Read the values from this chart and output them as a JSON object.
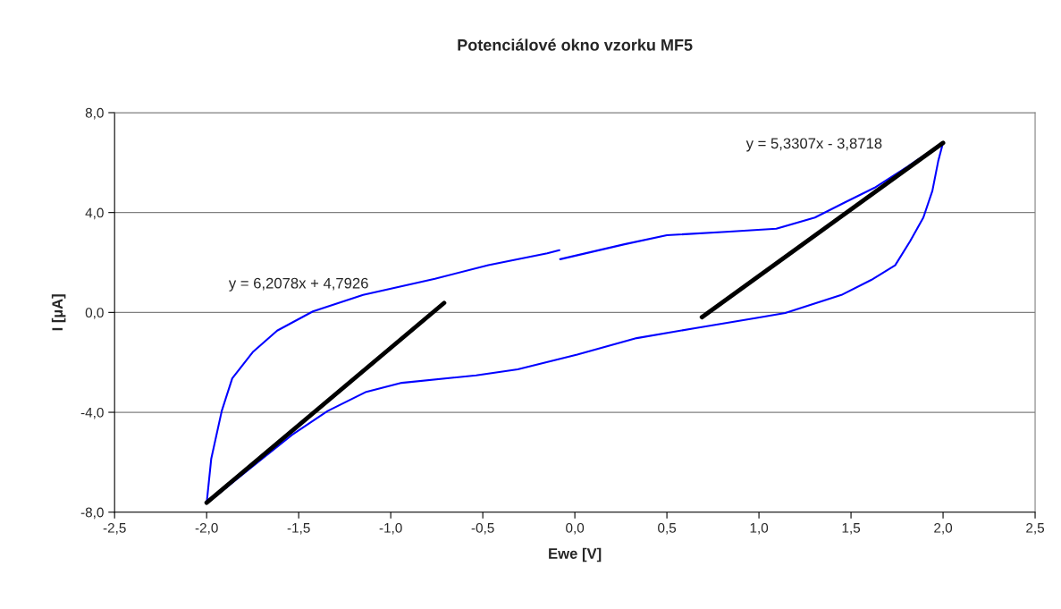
{
  "chart_data": {
    "type": "line",
    "title": "Potenciálové okno vzorku MF5",
    "xlabel": "Ewe [V]",
    "ylabel": "I [µA]",
    "xlim": [
      -2.5,
      2.5
    ],
    "xticks": [
      {
        "value": -2.5,
        "label": "-2,5"
      },
      {
        "value": -2.0,
        "label": "-2,0"
      },
      {
        "value": -1.5,
        "label": "-1,5"
      },
      {
        "value": -1.0,
        "label": "-1,0"
      },
      {
        "value": -0.5,
        "label": "-0,5"
      },
      {
        "value": 0,
        "label": "0,0"
      },
      {
        "value": 0.5,
        "label": "0,5"
      },
      {
        "value": 1.0,
        "label": "1,0"
      },
      {
        "value": 1.5,
        "label": "1,5"
      },
      {
        "value": 2.0,
        "label": "2,0"
      },
      {
        "value": 2.5,
        "label": "2,5"
      }
    ],
    "ylim": [
      -8,
      8
    ],
    "yticks": [
      {
        "value": -8,
        "label": "-8,0"
      },
      {
        "value": -4,
        "label": "-4,0"
      },
      {
        "value": 0,
        "label": "0,0"
      },
      {
        "value": 4,
        "label": "4,0"
      },
      {
        "value": 8,
        "label": "8,0"
      }
    ],
    "grid": "y",
    "legend": false,
    "marker": "none",
    "series": [
      {
        "color": "#0000ff",
        "x": [
          -2.0,
          -1.975,
          -1.918,
          -1.861,
          -1.747,
          -1.617,
          -1.423,
          -1.15,
          -0.76,
          -0.47,
          -0.15,
          -0.084,
          -0.082,
          -0.08,
          0.27,
          0.5,
          0.82,
          1.094,
          1.304,
          1.465,
          1.627,
          1.805,
          2.0,
          1.974,
          1.942,
          1.893,
          1.821,
          1.74,
          1.61,
          1.448,
          1.143,
          0.98,
          0.66,
          0.336,
          0.013,
          -0.31,
          -0.536,
          -0.94,
          -1.133,
          -1.343,
          -1.537,
          -1.698,
          -1.86,
          -2.0
        ],
        "values": [
          -7.65,
          -5.86,
          -3.95,
          -2.64,
          -1.57,
          -0.73,
          0.04,
          0.7,
          1.35,
          1.89,
          2.37,
          2.49,
          null,
          2.13,
          2.73,
          3.09,
          3.23,
          3.35,
          3.8,
          4.4,
          4.99,
          5.83,
          6.8,
          6.07,
          4.87,
          3.8,
          2.85,
          1.89,
          1.3,
          0.7,
          -0.02,
          -0.23,
          -0.62,
          -1.03,
          -1.69,
          -2.28,
          -2.52,
          -2.82,
          -3.18,
          -3.95,
          -4.91,
          -5.86,
          -6.82,
          -7.65
        ]
      },
      {
        "color": "#000000",
        "x": [
          -2.0,
          -0.71
        ],
        "values": [
          -7.62,
          0.38
        ]
      },
      {
        "color": "#000000",
        "x": [
          0.69,
          2.0
        ],
        "values": [
          -0.19,
          6.79
        ]
      }
    ],
    "annotations": [
      "y = 6,2078x + 4,7926",
      "y = 5,3307x - 3,8718"
    ]
  }
}
